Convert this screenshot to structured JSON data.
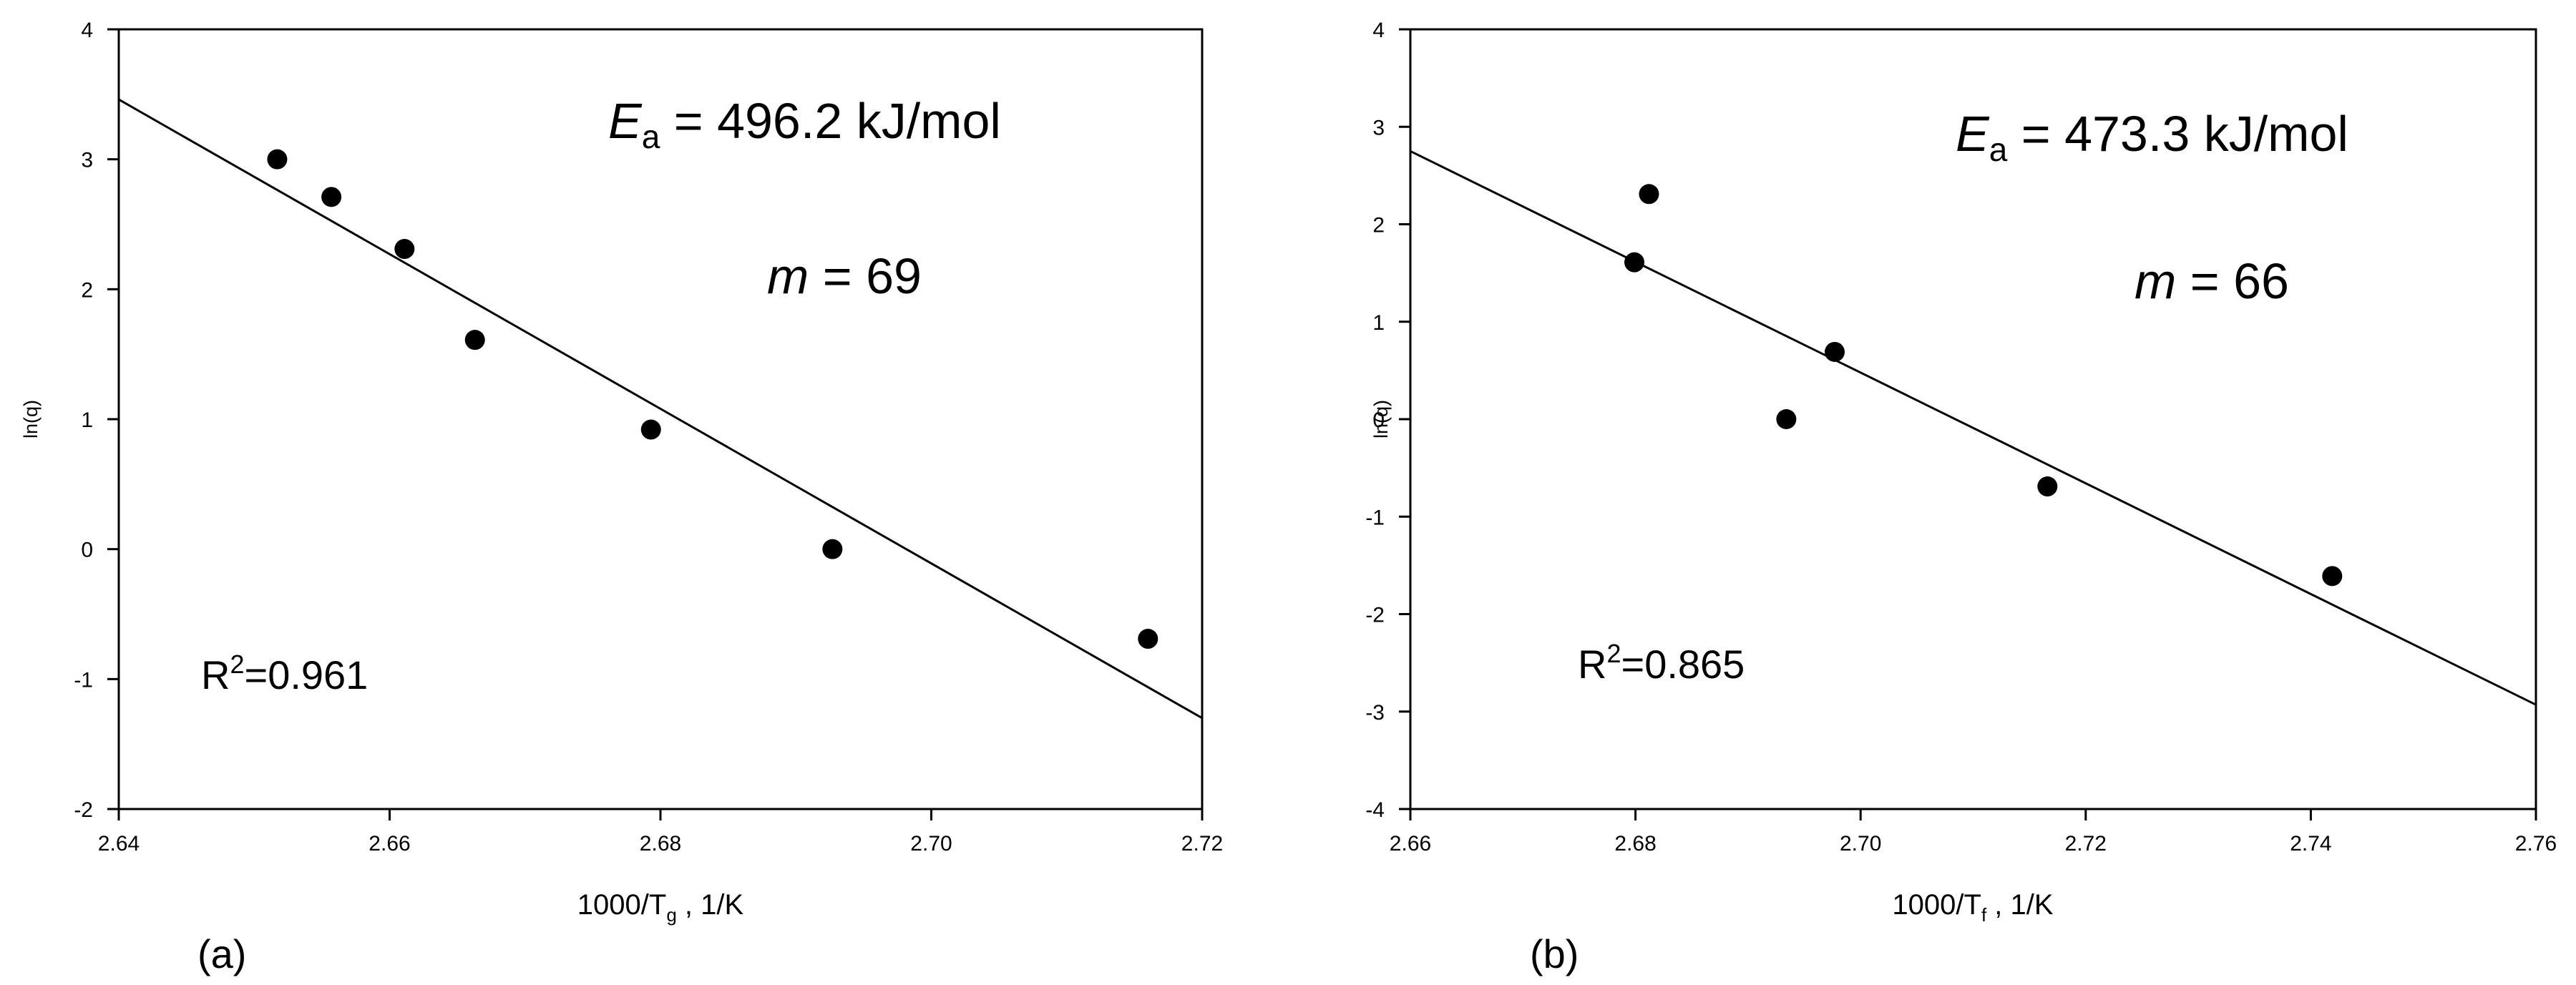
{
  "chart_data": [
    {
      "type": "scatter",
      "panel_label": "(a)",
      "xlabel_prefix": "1000/T",
      "xlabel_sub": "g",
      "xlabel_suffix": " , 1/K",
      "ylabel": "ln(q)",
      "xlim": [
        2.64,
        2.72
      ],
      "ylim": [
        -2,
        4
      ],
      "xticks": [
        2.64,
        2.66,
        2.68,
        2.7,
        2.72
      ],
      "xtick_labels": [
        "2.64",
        "2.66",
        "2.68",
        "2.70",
        "2.72"
      ],
      "yticks": [
        -2,
        -1,
        0,
        1,
        2,
        3,
        4
      ],
      "ytick_labels": [
        "-2",
        "-1",
        "0",
        "1",
        "2",
        "3",
        "4"
      ],
      "points": [
        {
          "x": 2.6517,
          "y": 3.0
        },
        {
          "x": 2.6557,
          "y": 2.71
        },
        {
          "x": 2.6611,
          "y": 2.31
        },
        {
          "x": 2.6663,
          "y": 1.61
        },
        {
          "x": 2.6793,
          "y": 0.92
        },
        {
          "x": 2.6927,
          "y": 0.0
        },
        {
          "x": 2.716,
          "y": -0.69
        }
      ],
      "fit_line": {
        "x": [
          2.64,
          2.72
        ],
        "y": [
          3.46,
          -1.3
        ]
      },
      "annotations": {
        "ea_symbol": "E",
        "ea_sub": "a",
        "ea_value": " = 496.2 kJ/mol",
        "m_symbol": "m",
        "m_value": " = 69",
        "r2_prefix": "R",
        "r2_sup": "2",
        "r2_value": "=0.961"
      }
    },
    {
      "type": "scatter",
      "panel_label": "(b)",
      "xlabel_prefix": "1000/T",
      "xlabel_sub": "f",
      "xlabel_suffix": " , 1/K",
      "ylabel": "ln(q)",
      "xlim": [
        2.66,
        2.76
      ],
      "ylim": [
        -4,
        4
      ],
      "xticks": [
        2.66,
        2.68,
        2.7,
        2.72,
        2.74,
        2.76
      ],
      "xtick_labels": [
        "2.66",
        "2.68",
        "2.70",
        "2.72",
        "2.74",
        "2.76"
      ],
      "yticks": [
        -4,
        -3,
        -2,
        -1,
        0,
        1,
        2,
        3,
        4
      ],
      "ytick_labels": [
        "-4",
        "-3",
        "-2",
        "-1",
        "0",
        "1",
        "2",
        "3",
        "4"
      ],
      "points": [
        {
          "x": 2.6799,
          "y": 1.61
        },
        {
          "x": 2.6812,
          "y": 2.31
        },
        {
          "x": 2.6934,
          "y": 0.0
        },
        {
          "x": 2.6977,
          "y": 0.69
        },
        {
          "x": 2.7166,
          "y": -0.69
        },
        {
          "x": 2.7419,
          "y": -1.61
        }
      ],
      "fit_line": {
        "x": [
          2.66,
          2.76
        ],
        "y": [
          2.75,
          -2.93
        ]
      },
      "annotations": {
        "ea_symbol": "E",
        "ea_sub": "a",
        "ea_value": " = 473.3 kJ/mol",
        "m_symbol": "m",
        "m_value": " = 66",
        "r2_prefix": "R",
        "r2_sup": "2",
        "r2_value": "=0.865"
      }
    }
  ]
}
